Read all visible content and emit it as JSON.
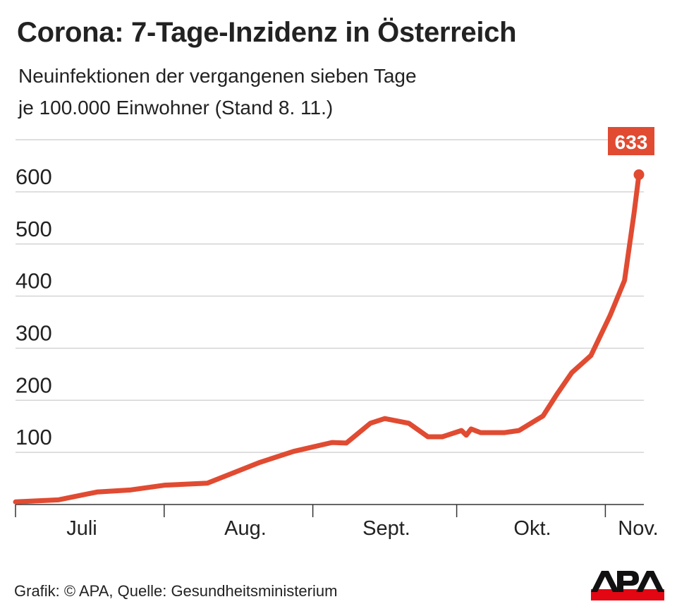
{
  "header": {
    "title": "Corona: 7-Tage-Inzidenz in Österreich",
    "subtitle_line1": "Neuinfektionen der vergangenen sieben Tage",
    "subtitle_line2": "je 100.000 Einwohner (Stand 8. 11.)"
  },
  "chart_data": {
    "type": "line",
    "title": "Corona: 7-Tage-Inzidenz in Österreich",
    "xlabel": "",
    "ylabel": "",
    "ylim": [
      0,
      700
    ],
    "yticks": [
      "100",
      "200",
      "300",
      "400",
      "500",
      "600"
    ],
    "grid": true,
    "x_tick_labels": [
      "Juli",
      "Aug.",
      "Sept.",
      "Okt.",
      "Nov."
    ],
    "series": [
      {
        "color": "#e04b32",
        "points": [
          {
            "x": "2020-07-01",
            "y": 5
          },
          {
            "x": "2020-07-10",
            "y": 9
          },
          {
            "x": "2020-07-18",
            "y": 24
          },
          {
            "x": "2020-07-25",
            "y": 28
          },
          {
            "x": "2020-08-01",
            "y": 37
          },
          {
            "x": "2020-08-10",
            "y": 41
          },
          {
            "x": "2020-08-21",
            "y": 81
          },
          {
            "x": "2020-08-28",
            "y": 102
          },
          {
            "x": "2020-09-05",
            "y": 119
          },
          {
            "x": "2020-09-08",
            "y": 118
          },
          {
            "x": "2020-09-13",
            "y": 156
          },
          {
            "x": "2020-09-16",
            "y": 165
          },
          {
            "x": "2020-09-21",
            "y": 156
          },
          {
            "x": "2020-09-25",
            "y": 130
          },
          {
            "x": "2020-09-28",
            "y": 130
          },
          {
            "x": "2020-10-02",
            "y": 142
          },
          {
            "x": "2020-10-03",
            "y": 133
          },
          {
            "x": "2020-10-04",
            "y": 145
          },
          {
            "x": "2020-10-06",
            "y": 138
          },
          {
            "x": "2020-10-11",
            "y": 138
          },
          {
            "x": "2020-10-14",
            "y": 142
          },
          {
            "x": "2020-10-19",
            "y": 170
          },
          {
            "x": "2020-10-22",
            "y": 213
          },
          {
            "x": "2020-10-25",
            "y": 253
          },
          {
            "x": "2020-10-29",
            "y": 286
          },
          {
            "x": "2020-11-02",
            "y": 363
          },
          {
            "x": "2020-11-05",
            "y": 430
          },
          {
            "x": "2020-11-07",
            "y": 560
          },
          {
            "x": "2020-11-08",
            "y": 633
          }
        ]
      }
    ],
    "annotations": [
      {
        "x": "2020-11-08",
        "text": "633"
      }
    ]
  },
  "footer": {
    "credit": "Grafik: © APA, Quelle: Gesundheitsministerium"
  },
  "logo": {
    "text": "APA"
  }
}
